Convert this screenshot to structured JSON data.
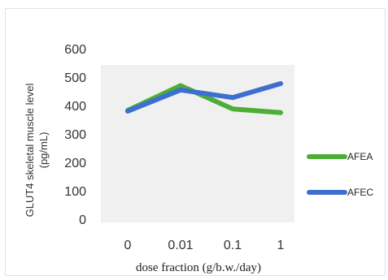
{
  "chart_data": {
    "type": "line",
    "categories": [
      "0",
      "0.01",
      "0.1",
      "1"
    ],
    "series": [
      {
        "name": "AFEA",
        "values": [
          383,
          470,
          388,
          375
        ],
        "color": "#4caf35"
      },
      {
        "name": "AFEC",
        "values": [
          380,
          455,
          428,
          477
        ],
        "color": "#3d6fd0"
      }
    ],
    "title": "",
    "xlabel": "dose fraction (g/b.w./day)",
    "ylabel_lines": [
      "GLUT4 skeletal muscle level",
      "(pg/mL)"
    ],
    "ylim": [
      0,
      600
    ],
    "yticks": [
      "0",
      "100",
      "200",
      "300",
      "400",
      "500",
      "600"
    ],
    "grid": false,
    "legend_position": "right",
    "plot_background": "#f0f0f0"
  }
}
